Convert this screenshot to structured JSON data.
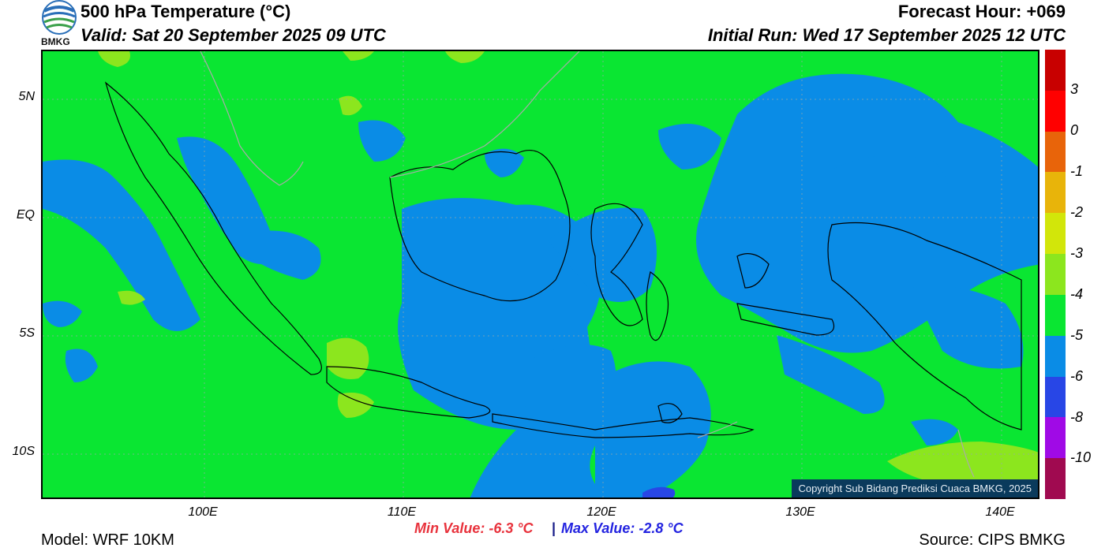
{
  "header": {
    "title": "500 hPa Temperature (°C)",
    "valid": "Valid: Sat 20 September 2025 09 UTC",
    "forecast_hour": "Forecast Hour: +069",
    "initial_run": "Initial Run: Wed 17 September 2025 12 UTC",
    "logo_text": "BMKG"
  },
  "map": {
    "lat_labels": [
      "5N",
      "EQ",
      "5S",
      "10S"
    ],
    "lon_labels": [
      "100E",
      "110E",
      "120E",
      "130E",
      "140E"
    ],
    "copyright": "Copyright Sub Bidang Prediksi Cuaca BMKG, 2025"
  },
  "colorbar": {
    "labels": [
      "3",
      "0",
      "-1",
      "-2",
      "-3",
      "-4",
      "-5",
      "-6",
      "-8",
      "-10"
    ],
    "colors": [
      "#c80000",
      "#ff0000",
      "#e8640a",
      "#e8b40a",
      "#d2e60a",
      "#8ce61e",
      "#0ae632",
      "#0a8ce6",
      "#2846e6",
      "#a00ae6",
      "#a00a50"
    ]
  },
  "stats": {
    "min": "Min Value: -6.3 °C",
    "separator": "|",
    "max": "Max Value: -2.8 °C"
  },
  "footer": {
    "model": "Model: WRF 10KM",
    "source": "Source: CIPS BMKG"
  }
}
